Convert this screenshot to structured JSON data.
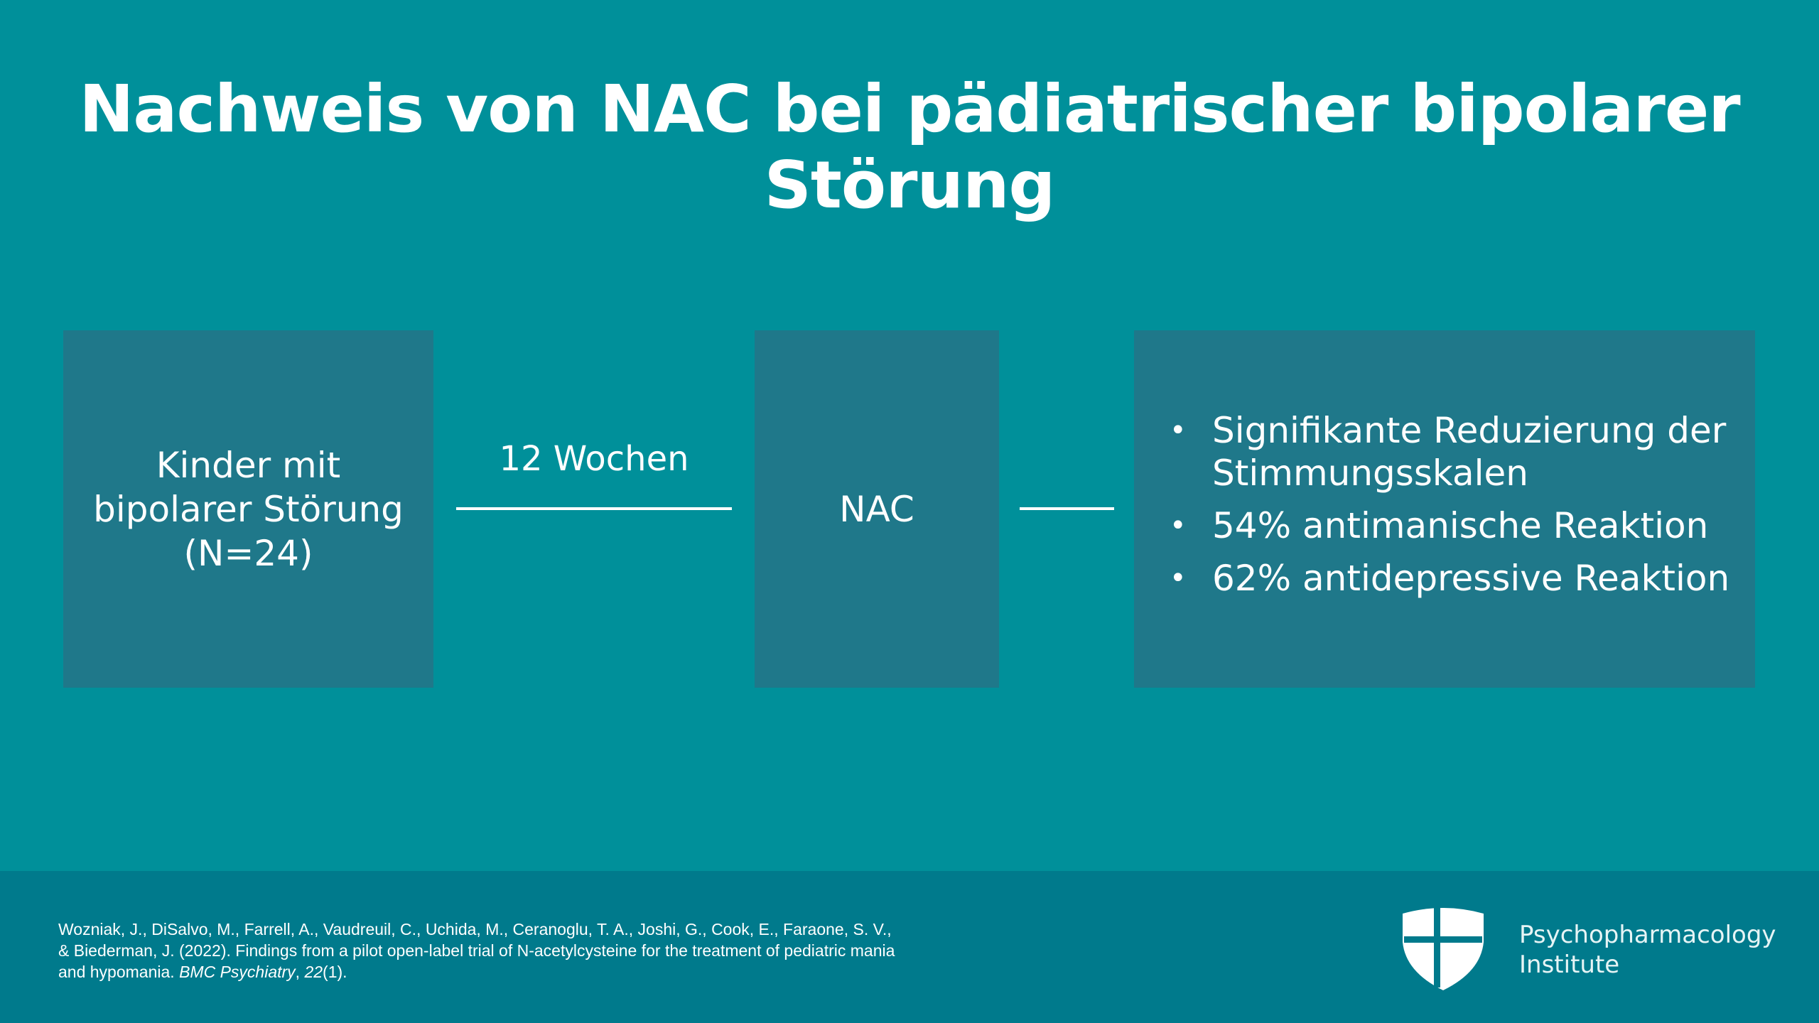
{
  "title": "Nachweis von NAC bei pädiatrischer bipolarer Störung",
  "left_box": {
    "lines": [
      "Kinder mit",
      "bipolarer Störung",
      "(N=24)"
    ]
  },
  "connector_label": "12 Wochen",
  "mid_box": {
    "label": "NAC"
  },
  "right_box": {
    "bullets": [
      {
        "line1": "Signifikante Reduzierung der",
        "line2": "Stimmungsskalen"
      },
      {
        "line1": "54% antimanische Reaktion"
      },
      {
        "line1": "62% antidepressive Reaktion"
      }
    ],
    "bullet_glyph": "•"
  },
  "citation": {
    "line1": "Wozniak, J., DiSalvo, M., Farrell, A., Vaudreuil, C., Uchida, M., Ceranoglu, T. A., Joshi, G., Cook, E., Faraone, S. V.,",
    "line2": "& Biederman, J. (2022). Findings from a pilot open-label trial of N-acetylcysteine for the treatment of pediatric mania",
    "line3_prefix": "and hypomania. ",
    "journal": "BMC Psychiatry",
    "sep": ", ",
    "volume": "22",
    "issue": "(1)."
  },
  "logo": {
    "icon": "shield-icon",
    "line1": "Psychopharmacology",
    "line2": "Institute"
  },
  "colors": {
    "background": "#00909a",
    "box": "#1f788a",
    "footer": "#007a8c",
    "text": "#ffffff"
  }
}
